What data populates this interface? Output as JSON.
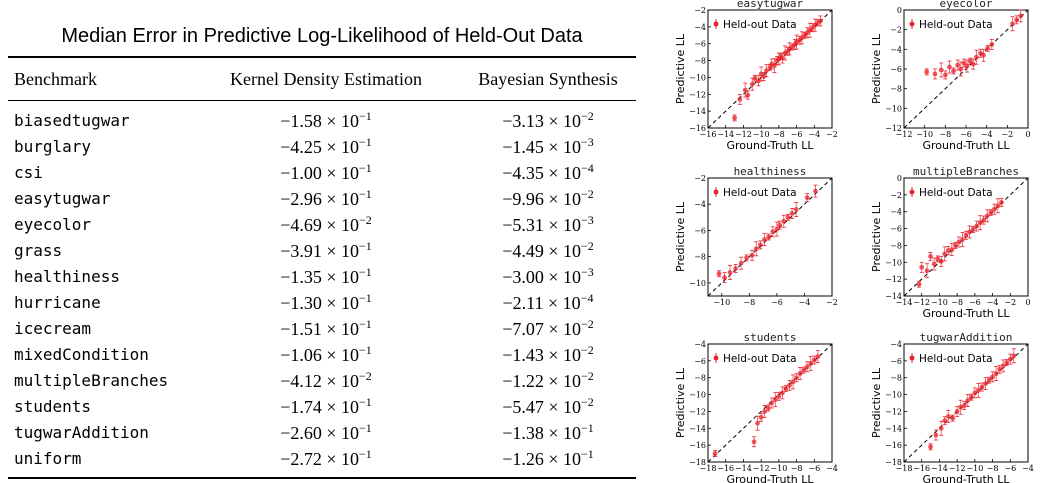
{
  "table": {
    "title": "Median Error in Predictive Log-Likelihood of Held-Out Data",
    "headers": [
      "Benchmark",
      "Kernel Density Estimation",
      "Bayesian Synthesis"
    ],
    "rows": [
      {
        "name": "biasedtugwar",
        "kde": {
          "m": "−1.58",
          "e": "−1"
        },
        "bs": {
          "m": "−3.13",
          "e": "−2"
        }
      },
      {
        "name": "burglary",
        "kde": {
          "m": "−4.25",
          "e": "−1"
        },
        "bs": {
          "m": "−1.45",
          "e": "−3"
        }
      },
      {
        "name": "csi",
        "kde": {
          "m": "−1.00",
          "e": "−1"
        },
        "bs": {
          "m": "−4.35",
          "e": "−4"
        }
      },
      {
        "name": "easytugwar",
        "kde": {
          "m": "−2.96",
          "e": "−1"
        },
        "bs": {
          "m": "−9.96",
          "e": "−2"
        }
      },
      {
        "name": "eyecolor",
        "kde": {
          "m": "−4.69",
          "e": "−2"
        },
        "bs": {
          "m": "−5.31",
          "e": "−3"
        }
      },
      {
        "name": "grass",
        "kde": {
          "m": "−3.91",
          "e": "−1"
        },
        "bs": {
          "m": "−4.49",
          "e": "−2"
        }
      },
      {
        "name": "healthiness",
        "kde": {
          "m": "−1.35",
          "e": "−1"
        },
        "bs": {
          "m": "−3.00",
          "e": "−3"
        }
      },
      {
        "name": "hurricane",
        "kde": {
          "m": "−1.30",
          "e": "−1"
        },
        "bs": {
          "m": "−2.11",
          "e": "−4"
        }
      },
      {
        "name": "icecream",
        "kde": {
          "m": "−1.51",
          "e": "−1"
        },
        "bs": {
          "m": "−7.07",
          "e": "−2"
        }
      },
      {
        "name": "mixedCondition",
        "kde": {
          "m": "−1.06",
          "e": "−1"
        },
        "bs": {
          "m": "−1.43",
          "e": "−2"
        }
      },
      {
        "name": "multipleBranches",
        "kde": {
          "m": "−4.12",
          "e": "−2"
        },
        "bs": {
          "m": "−1.22",
          "e": "−2"
        }
      },
      {
        "name": "students",
        "kde": {
          "m": "−1.74",
          "e": "−1"
        },
        "bs": {
          "m": "−5.47",
          "e": "−2"
        }
      },
      {
        "name": "tugwarAddition",
        "kde": {
          "m": "−2.60",
          "e": "−1"
        },
        "bs": {
          "m": "−1.38",
          "e": "−1"
        }
      },
      {
        "name": "uniform",
        "kde": {
          "m": "−2.72",
          "e": "−1"
        },
        "bs": {
          "m": "−1.26",
          "e": "−1"
        }
      }
    ]
  },
  "chart_data": [
    {
      "type": "scatter",
      "title": "easytugwar",
      "xlabel": "Ground-Truth LL",
      "ylabel": "Predictive LL",
      "xlim": [
        -16,
        -2
      ],
      "ylim": [
        -16,
        -2
      ],
      "xticks": [
        -16,
        -14,
        -12,
        -10,
        -8,
        -6,
        -4,
        -2
      ],
      "yticks": [
        -16,
        -14,
        -12,
        -10,
        -8,
        -6,
        -4,
        -2
      ],
      "legend": "Held-out Data",
      "legend_position": "top-left",
      "reference_line": "y = x (dashed)",
      "points": [
        [
          -13,
          -14.8
        ],
        [
          -12.4,
          -12.6
        ],
        [
          -11.8,
          -11.5
        ],
        [
          -11.5,
          -12.1
        ],
        [
          -11,
          -10.8
        ],
        [
          -10.7,
          -10.1
        ],
        [
          -10.3,
          -10.4
        ],
        [
          -10,
          -9.6
        ],
        [
          -9.7,
          -9.9
        ],
        [
          -9.4,
          -9.2
        ],
        [
          -9,
          -8.8
        ],
        [
          -8.8,
          -8.4
        ],
        [
          -8.5,
          -8.6
        ],
        [
          -8.2,
          -8
        ],
        [
          -8,
          -7.8
        ],
        [
          -7.8,
          -7.5
        ],
        [
          -7.6,
          -7.7
        ],
        [
          -7.3,
          -7.1
        ],
        [
          -7,
          -6.9
        ],
        [
          -6.8,
          -6.6
        ],
        [
          -6.5,
          -6.4
        ],
        [
          -6.2,
          -6.1
        ],
        [
          -6,
          -5.8
        ],
        [
          -5.7,
          -5.6
        ],
        [
          -5.4,
          -5.3
        ],
        [
          -5.1,
          -5
        ],
        [
          -4.8,
          -4.7
        ],
        [
          -4.5,
          -4.4
        ],
        [
          -4.2,
          -4.1
        ],
        [
          -3.9,
          -3.8
        ],
        [
          -3.6,
          -3.5
        ],
        [
          -3.3,
          -3.3
        ]
      ]
    },
    {
      "type": "scatter",
      "title": "eyecolor",
      "xlabel": "Ground-Truth LL",
      "ylabel": "Predictive LL",
      "xlim": [
        -12,
        0
      ],
      "ylim": [
        -12,
        0
      ],
      "xticks": [
        -12,
        -10,
        -8,
        -6,
        -4,
        -2,
        0
      ],
      "yticks": [
        -12,
        -10,
        -8,
        -6,
        -4,
        -2,
        0
      ],
      "legend": "Held-out Data",
      "legend_position": "top-left",
      "reference_line": "y = x (dashed)",
      "points": [
        [
          -9.8,
          -6.3
        ],
        [
          -9,
          -6.5
        ],
        [
          -8.4,
          -6.1
        ],
        [
          -8,
          -6.6
        ],
        [
          -7.6,
          -5.8
        ],
        [
          -7.2,
          -6.2
        ],
        [
          -6.8,
          -5.6
        ],
        [
          -6.5,
          -6
        ],
        [
          -6.2,
          -5.4
        ],
        [
          -5.9,
          -5.7
        ],
        [
          -5.6,
          -5.2
        ],
        [
          -5.3,
          -5.5
        ],
        [
          -5,
          -4.8
        ],
        [
          -4.6,
          -4.4
        ],
        [
          -4.3,
          -4.6
        ],
        [
          -3.9,
          -3.9
        ],
        [
          -3.5,
          -3.5
        ],
        [
          -1.5,
          -1.4
        ],
        [
          -1.1,
          -1
        ],
        [
          -0.7,
          -0.6
        ]
      ]
    },
    {
      "type": "scatter",
      "title": "healthiness",
      "xlabel": "",
      "ylabel": "Predictive LL",
      "xlim": [
        -11,
        -2
      ],
      "ylim": [
        -11,
        -2
      ],
      "xticks": [
        -10,
        -8,
        -6,
        -4,
        -2
      ],
      "yticks": [
        -10,
        -8,
        -6,
        -4,
        -2
      ],
      "legend": "Held-out Data",
      "legend_position": "top-left",
      "reference_line": "y = x (dashed)",
      "points": [
        [
          -10.2,
          -9.3
        ],
        [
          -9.8,
          -9.6
        ],
        [
          -9.4,
          -9.2
        ],
        [
          -9,
          -8.9
        ],
        [
          -8.6,
          -8.5
        ],
        [
          -8.2,
          -8.1
        ],
        [
          -7.8,
          -7.9
        ],
        [
          -7.5,
          -7.4
        ],
        [
          -7.2,
          -7.1
        ],
        [
          -6.9,
          -6.7
        ],
        [
          -6.6,
          -6.5
        ],
        [
          -6.3,
          -6.1
        ],
        [
          -6,
          -5.9
        ],
        [
          -5.8,
          -5.6
        ],
        [
          -5.5,
          -5.3
        ],
        [
          -5.2,
          -5
        ],
        [
          -4.9,
          -4.7
        ],
        [
          -4.6,
          -4.4
        ],
        [
          -3.8,
          -3.5
        ],
        [
          -3.2,
          -3
        ]
      ]
    },
    {
      "type": "scatter",
      "title": "multipleBranches",
      "xlabel": "Ground-Truth LL",
      "ylabel": "Predictive LL",
      "xlim": [
        -14,
        0
      ],
      "ylim": [
        -14,
        0
      ],
      "xticks": [
        -14,
        -12,
        -10,
        -8,
        -6,
        -4,
        -2,
        0
      ],
      "yticks": [
        -14,
        -12,
        -10,
        -8,
        -6,
        -4,
        -2,
        0
      ],
      "legend": "Held-out Data",
      "legend_position": "top-left",
      "reference_line": "y = x (dashed)",
      "points": [
        [
          -12.3,
          -12.6
        ],
        [
          -12,
          -10.6
        ],
        [
          -11.4,
          -11
        ],
        [
          -11,
          -9.3
        ],
        [
          -10.6,
          -10.2
        ],
        [
          -10.2,
          -9.6
        ],
        [
          -9.8,
          -9.9
        ],
        [
          -9.4,
          -9
        ],
        [
          -9,
          -8.6
        ],
        [
          -8.6,
          -8.5
        ],
        [
          -8.2,
          -8
        ],
        [
          -7.8,
          -7.6
        ],
        [
          -7.4,
          -7.3
        ],
        [
          -7,
          -6.8
        ],
        [
          -6.6,
          -6.4
        ],
        [
          -6.2,
          -6.1
        ],
        [
          -5.8,
          -5.7
        ],
        [
          -5.4,
          -5.3
        ],
        [
          -5,
          -5
        ],
        [
          -4.6,
          -4.5
        ],
        [
          -4.2,
          -4.1
        ],
        [
          -3.8,
          -3.7
        ],
        [
          -3.4,
          -3.3
        ],
        [
          -3,
          -2.9
        ]
      ]
    },
    {
      "type": "scatter",
      "title": "students",
      "xlabel": "Ground-Truth LL",
      "ylabel": "Predictive LL",
      "xlim": [
        -18,
        -4
      ],
      "ylim": [
        -18,
        -4
      ],
      "xticks": [
        -18,
        -16,
        -14,
        -12,
        -10,
        -8,
        -6,
        -4
      ],
      "yticks": [
        -18,
        -16,
        -14,
        -12,
        -10,
        -8,
        -6,
        -4
      ],
      "legend": "Held-out Data",
      "legend_position": "top-left",
      "reference_line": "y = x (dashed)",
      "points": [
        [
          -17.2,
          -17
        ],
        [
          -12.8,
          -15.6
        ],
        [
          -12.4,
          -13.4
        ],
        [
          -12,
          -12.7
        ],
        [
          -11.6,
          -12
        ],
        [
          -11.2,
          -11.6
        ],
        [
          -10.8,
          -11
        ],
        [
          -10.4,
          -10.6
        ],
        [
          -10,
          -10.2
        ],
        [
          -9.6,
          -9.8
        ],
        [
          -9.2,
          -9.3
        ],
        [
          -8.8,
          -8.9
        ],
        [
          -8.4,
          -8.5
        ],
        [
          -8,
          -8
        ],
        [
          -7.6,
          -7.5
        ],
        [
          -7.2,
          -7.1
        ],
        [
          -6.8,
          -6.7
        ],
        [
          -6.4,
          -6.3
        ],
        [
          -6,
          -5.9
        ],
        [
          -5.6,
          -5.5
        ]
      ]
    },
    {
      "type": "scatter",
      "title": "tugwarAddition",
      "xlabel": "Ground-Truth LL",
      "ylabel": "Predictive LL",
      "xlim": [
        -18,
        -4
      ],
      "ylim": [
        -18,
        -4
      ],
      "xticks": [
        -18,
        -16,
        -14,
        -12,
        -10,
        -8,
        -6,
        -4
      ],
      "yticks": [
        -18,
        -16,
        -14,
        -12,
        -10,
        -8,
        -6,
        -4
      ],
      "legend": "Held-out Data",
      "legend_position": "top-left",
      "reference_line": "y = x (dashed)",
      "points": [
        [
          -15,
          -16.2
        ],
        [
          -14.4,
          -14.8
        ],
        [
          -13.8,
          -14
        ],
        [
          -13.4,
          -13.1
        ],
        [
          -13,
          -12.6
        ],
        [
          -12.5,
          -12.8
        ],
        [
          -12,
          -12
        ],
        [
          -11.6,
          -11.5
        ],
        [
          -11.2,
          -11.3
        ],
        [
          -10.8,
          -10.7
        ],
        [
          -10.4,
          -10.3
        ],
        [
          -10,
          -9.8
        ],
        [
          -9.6,
          -9.5
        ],
        [
          -9.2,
          -9.1
        ],
        [
          -8.8,
          -8.7
        ],
        [
          -8.4,
          -8.3
        ],
        [
          -8,
          -7.9
        ],
        [
          -7.6,
          -7.5
        ],
        [
          -7.2,
          -7
        ],
        [
          -6.8,
          -6.6
        ],
        [
          -6.4,
          -6.2
        ],
        [
          -6,
          -5.8
        ],
        [
          -5.6,
          -5.4
        ]
      ]
    }
  ]
}
